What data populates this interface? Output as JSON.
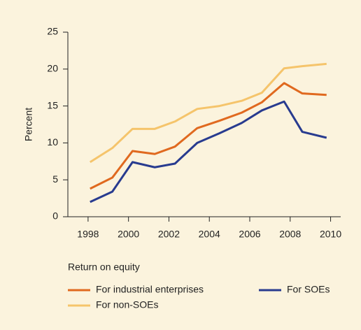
{
  "chart_data": {
    "type": "line",
    "y_label": "Percent",
    "legend_title": "Return on equity",
    "legend": "bottom",
    "x": [
      1998.1,
      1999.2,
      2000.2,
      2001.3,
      2002.3,
      2003.4,
      2004.5,
      2005.6,
      2006.6,
      2007.7,
      2008.6,
      2009.8
    ],
    "series": [
      {
        "name": "For industrial enterprises",
        "color": "#e0691f",
        "values": [
          3.8,
          5.3,
          8.9,
          8.5,
          9.5,
          12,
          13,
          14.1,
          15.5,
          18.1,
          16.7,
          16.5
        ]
      },
      {
        "name": "For SOEs",
        "color": "#283b8f",
        "values": [
          2,
          3.4,
          7.4,
          6.7,
          7.2,
          10,
          11.3,
          12.7,
          14.4,
          15.6,
          11.5,
          10.7
        ]
      },
      {
        "name": "For non-SOEs",
        "color": "#f5c46b",
        "values": [
          7.4,
          9.3,
          11.9,
          11.9,
          12.9,
          14.6,
          15,
          15.7,
          16.8,
          20.1,
          20.4,
          20.7
        ]
      }
    ],
    "xlim": [
      1997,
      2010.5
    ],
    "xticks": [
      1998,
      2000,
      2002,
      2004,
      2006,
      2008,
      2010
    ],
    "ylim": [
      0,
      25
    ],
    "yticks": [
      0,
      5,
      10,
      15,
      20,
      25
    ],
    "grid": false
  }
}
